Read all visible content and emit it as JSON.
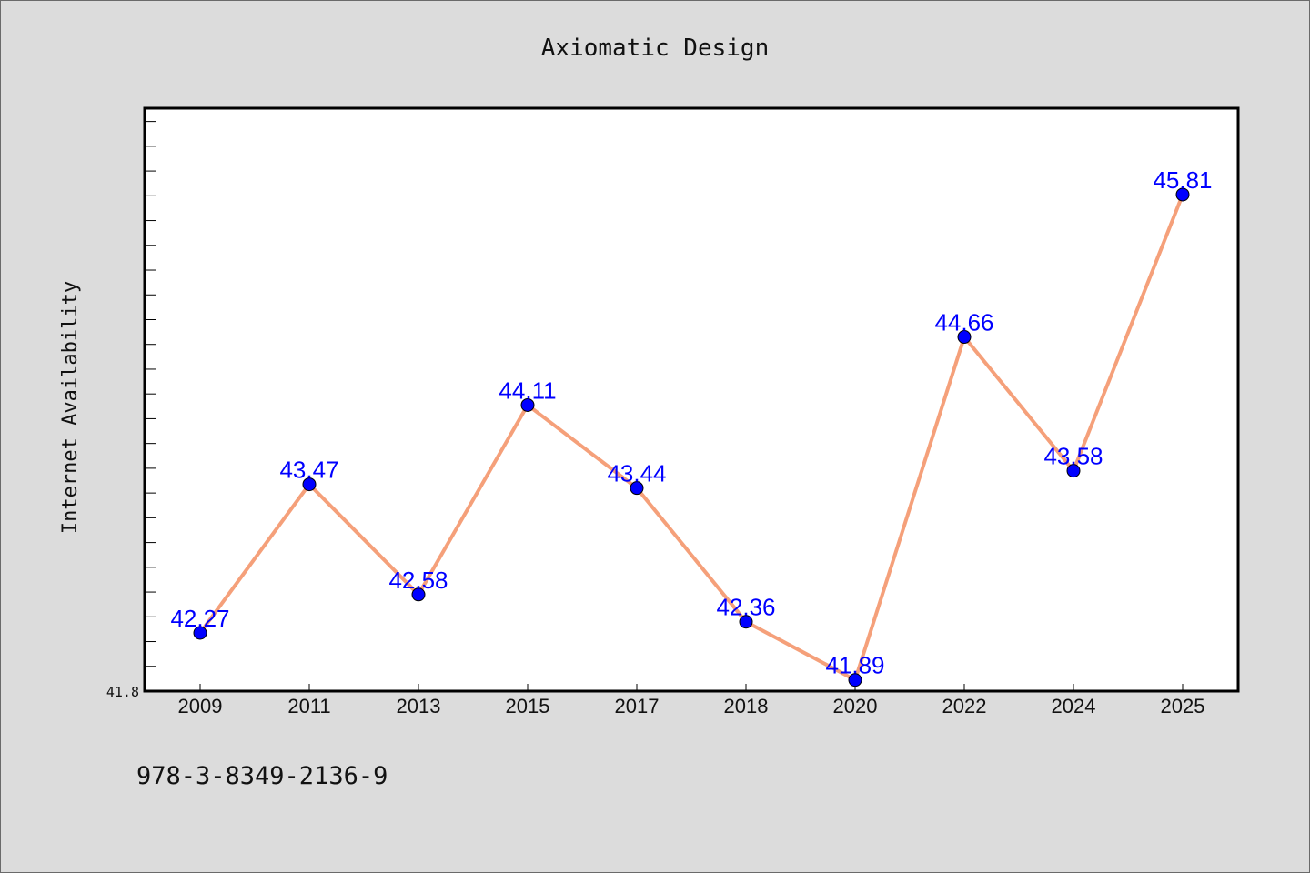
{
  "footer_text": "978-3-8349-2136-9",
  "colors": {
    "background": "#dcdcdc",
    "plot_area": "#ffffff",
    "line": "#f5a07a",
    "marker": "#0000ff",
    "data_label": "#0000ff"
  },
  "chart_data": {
    "type": "line",
    "title": "Axiomatic Design",
    "xlabel": "",
    "ylabel": "Internet Availability",
    "categories": [
      "2009",
      "2011",
      "2013",
      "2015",
      "2017",
      "2018",
      "2020",
      "2022",
      "2024",
      "2025"
    ],
    "series": [
      {
        "values": [
          42.27,
          43.47,
          42.58,
          44.11,
          43.44,
          42.36,
          41.89,
          44.66,
          43.58,
          45.81
        ],
        "labels": [
          "42.27",
          "43.47",
          "42.58",
          "44.11",
          "43.44",
          "42.36",
          "41.89",
          "44.66",
          "43.58",
          "45.81"
        ]
      }
    ],
    "ylim": [
      41.8,
      46.5
    ],
    "y_tick_label": "41.8",
    "y_minor_tick_step": 0.2,
    "grid": false,
    "legend": "none",
    "data_labels": true,
    "marker": "circle"
  }
}
